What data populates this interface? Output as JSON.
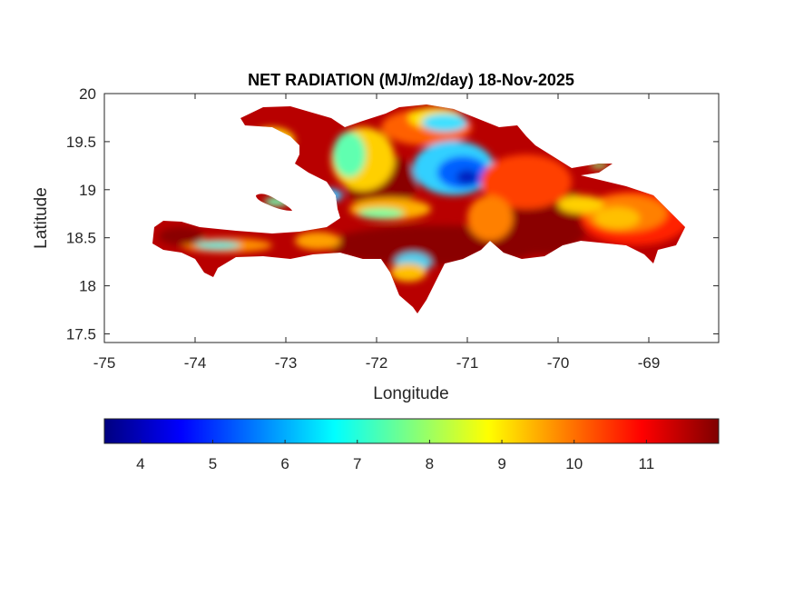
{
  "chart_data": {
    "type": "heatmap",
    "title": "NET RADIATION (MJ/m2/day) 18-Nov-2025",
    "xlabel": "Longitude",
    "ylabel": "Latitude",
    "xlim": [
      -75,
      -68.23
    ],
    "ylim": [
      17.41,
      20
    ],
    "xticks": [
      -75,
      -74,
      -73,
      -72,
      -71,
      -70,
      -69
    ],
    "xtick_labels": [
      "-75",
      "-74",
      "-73",
      "-72",
      "-71",
      "-70",
      "-69"
    ],
    "yticks": [
      17.5,
      18,
      18.5,
      19,
      19.5,
      20
    ],
    "ytick_labels": [
      "17.5",
      "18",
      "18.5",
      "19",
      "19.5",
      "20"
    ],
    "grid": false,
    "colormap": "jet",
    "colorbar": {
      "placement": "bottom",
      "range": [
        3.5,
        12
      ],
      "ticks": [
        4,
        5,
        6,
        7,
        8,
        9,
        10,
        11
      ],
      "tick_labels": [
        "4",
        "5",
        "6",
        "7",
        "8",
        "9",
        "10",
        "11"
      ],
      "colors": [
        "#00007f",
        "#0000ff",
        "#007fff",
        "#00ffff",
        "#7fff7f",
        "#ffff00",
        "#ff7f00",
        "#ff0000",
        "#7f0000"
      ]
    }
  }
}
